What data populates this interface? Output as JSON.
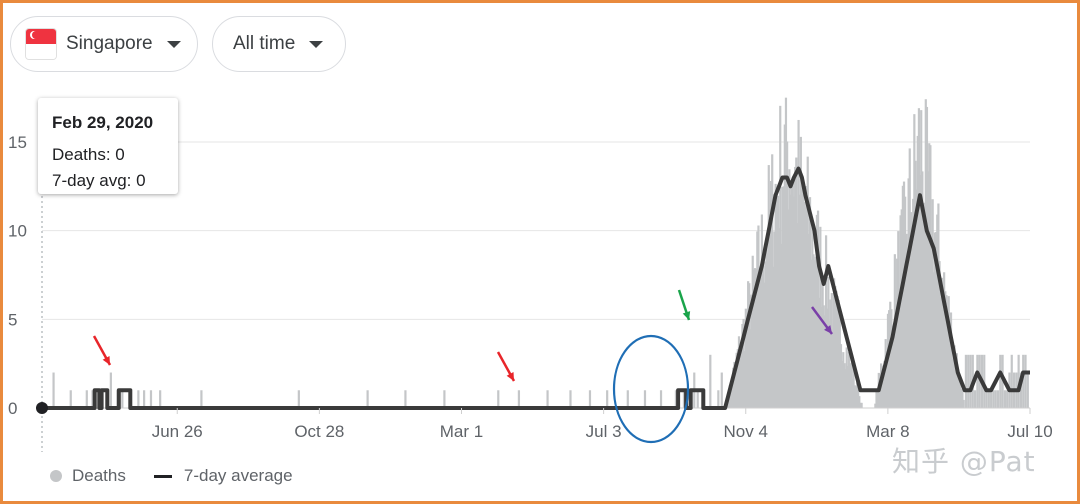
{
  "controls": {
    "region": "Singapore",
    "range": "All time",
    "region_flag": "singapore-flag"
  },
  "tooltip": {
    "date": "Feb 29, 2020",
    "deaths": "Deaths: 0",
    "avg": "7-day avg: 0"
  },
  "legend": {
    "deaths": "Deaths",
    "avg": "7-day average"
  },
  "watermark": "知乎 @Pat",
  "colors": {
    "bars": "#c4c6c8",
    "avg_line": "#3a3a3a",
    "frame": "#e98a3d",
    "arrow_red": "#e8252a",
    "arrow_green": "#1aa44a",
    "arrow_purple": "#7a3fa8",
    "circle": "#1f6eb5"
  },
  "chart_data": {
    "type": "bar",
    "series": [
      {
        "name": "Deaths",
        "values_note": "daily"
      },
      {
        "name": "7-day average"
      }
    ],
    "x": {
      "tick_labels": [
        "Jun 26",
        "Oct 28",
        "Mar 1",
        "Jul 3",
        "Nov 4",
        "Mar 8",
        "Jul 10"
      ],
      "tick_days": [
        118,
        242,
        366,
        490,
        614,
        738,
        862
      ],
      "range_days": [
        0,
        862
      ]
    },
    "y": {
      "ticks": [
        0,
        5,
        10,
        15
      ],
      "range": [
        0,
        17.5
      ]
    },
    "grid": true,
    "avg_points": [
      [
        0,
        0
      ],
      [
        46,
        0
      ],
      [
        46,
        1
      ],
      [
        50,
        1
      ],
      [
        50,
        0
      ],
      [
        52,
        0
      ],
      [
        52,
        1
      ],
      [
        57,
        1
      ],
      [
        57,
        0
      ],
      [
        67,
        0
      ],
      [
        67,
        1
      ],
      [
        77,
        1
      ],
      [
        77,
        0
      ],
      [
        555,
        0
      ],
      [
        555,
        1
      ],
      [
        562,
        1
      ],
      [
        562,
        0
      ],
      [
        566,
        0
      ],
      [
        566,
        1
      ],
      [
        577,
        1
      ],
      [
        577,
        0
      ],
      [
        596,
        0
      ],
      [
        600,
        1
      ],
      [
        604,
        2
      ],
      [
        608,
        3
      ],
      [
        612,
        4
      ],
      [
        616,
        5
      ],
      [
        620,
        6
      ],
      [
        624,
        7
      ],
      [
        628,
        8
      ],
      [
        631,
        9
      ],
      [
        634,
        10
      ],
      [
        637,
        11
      ],
      [
        640,
        12
      ],
      [
        643,
        12.5
      ],
      [
        646,
        13
      ],
      [
        650,
        13
      ],
      [
        653,
        12.5
      ],
      [
        656,
        13
      ],
      [
        660,
        13.5
      ],
      [
        663,
        13
      ],
      [
        666,
        12
      ],
      [
        670,
        11
      ],
      [
        674,
        10
      ],
      [
        678,
        8
      ],
      [
        682,
        7
      ],
      [
        686,
        8
      ],
      [
        690,
        7
      ],
      [
        694,
        6
      ],
      [
        698,
        5
      ],
      [
        702,
        4
      ],
      [
        706,
        3
      ],
      [
        710,
        2
      ],
      [
        714,
        1
      ],
      [
        730,
        1
      ],
      [
        734,
        2
      ],
      [
        738,
        3
      ],
      [
        742,
        4
      ],
      [
        745,
        5
      ],
      [
        748,
        6
      ],
      [
        751,
        7
      ],
      [
        754,
        8
      ],
      [
        757,
        9
      ],
      [
        760,
        10
      ],
      [
        763,
        11
      ],
      [
        766,
        12
      ],
      [
        769,
        11
      ],
      [
        772,
        10
      ],
      [
        775,
        9.5
      ],
      [
        778,
        9
      ],
      [
        781,
        8
      ],
      [
        784,
        7
      ],
      [
        787,
        6
      ],
      [
        790,
        5
      ],
      [
        793,
        4
      ],
      [
        796,
        3
      ],
      [
        799,
        2
      ],
      [
        802,
        1.5
      ],
      [
        805,
        1
      ],
      [
        810,
        1
      ],
      [
        813,
        1.5
      ],
      [
        816,
        2
      ],
      [
        820,
        1.5
      ],
      [
        824,
        1
      ],
      [
        828,
        1
      ],
      [
        832,
        1.5
      ],
      [
        836,
        2
      ],
      [
        840,
        1.5
      ],
      [
        844,
        1
      ],
      [
        848,
        1
      ],
      [
        852,
        1
      ],
      [
        856,
        2
      ],
      [
        862,
        2
      ]
    ],
    "daily_spikes": [
      [
        10,
        2
      ],
      [
        25,
        1
      ],
      [
        39,
        1
      ],
      [
        44,
        1
      ],
      [
        51,
        1
      ],
      [
        60,
        2
      ],
      [
        66,
        1
      ],
      [
        70,
        1
      ],
      [
        84,
        1
      ],
      [
        89,
        1
      ],
      [
        95,
        1
      ],
      [
        103,
        1
      ],
      [
        139,
        1
      ],
      [
        224,
        1
      ],
      [
        284,
        1
      ],
      [
        317,
        1
      ],
      [
        351,
        1
      ],
      [
        398,
        1
      ],
      [
        416,
        1
      ],
      [
        441,
        1
      ],
      [
        461,
        1
      ],
      [
        478,
        1
      ],
      [
        493,
        1
      ],
      [
        511,
        1
      ],
      [
        526,
        1
      ],
      [
        540,
        1
      ],
      [
        553,
        1
      ],
      [
        560,
        1
      ],
      [
        569,
        2
      ],
      [
        572,
        1
      ],
      [
        583,
        3
      ],
      [
        590,
        1
      ],
      [
        593,
        2
      ],
      [
        601,
        1
      ]
    ],
    "daily_wave1": {
      "start_day": 596,
      "end_day": 716,
      "peak_day": 650,
      "peak": 17.5
    },
    "daily_wave2": {
      "start_day": 726,
      "end_day": 805,
      "peak_day": 766,
      "peak": 17.5
    },
    "annotations": [
      {
        "type": "arrow",
        "color": "red"
      },
      {
        "type": "arrow",
        "color": "red"
      },
      {
        "type": "circle",
        "color": "blue"
      },
      {
        "type": "arrow",
        "color": "green"
      },
      {
        "type": "arrow",
        "color": "purple"
      }
    ]
  }
}
